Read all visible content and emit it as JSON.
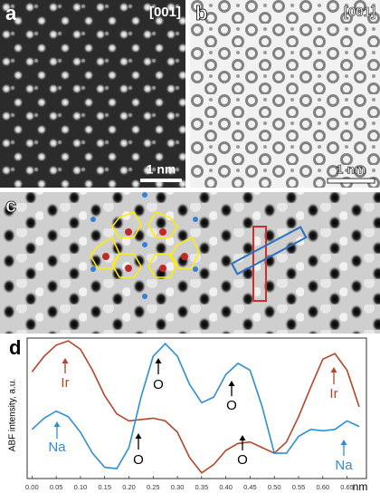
{
  "panels": [
    {
      "label": "a",
      "zone": "[001]",
      "scale": "1 nm"
    },
    {
      "label": "b",
      "zone": "[001]",
      "scale": "1 nm"
    },
    {
      "label": "c"
    }
  ],
  "chart_data": {
    "type": "line",
    "label": "d",
    "ylabel": "ABF intensity, a.u.",
    "xlabel": "nm",
    "x": [
      0,
      0.025,
      0.05,
      0.075,
      0.1,
      0.125,
      0.15,
      0.175,
      0.2,
      0.225,
      0.25,
      0.275,
      0.3,
      0.325,
      0.35,
      0.375,
      0.4,
      0.425,
      0.45,
      0.475,
      0.5,
      0.525,
      0.55,
      0.575,
      0.6,
      0.625,
      0.65,
      0.675
    ],
    "series": [
      {
        "color": "#b5452c",
        "values": [
          76,
          87,
          95,
          98,
          92,
          77,
          59,
          46,
          41,
          42,
          43,
          41,
          33,
          15,
          4,
          10,
          20,
          25,
          26,
          22,
          18,
          26,
          44,
          65,
          85,
          89,
          77,
          51
        ]
      },
      {
        "color": "#2e8fd2",
        "values": [
          35,
          43,
          48,
          44,
          33,
          18,
          8,
          7,
          22,
          58,
          87,
          96,
          87,
          67,
          54,
          58,
          74,
          82,
          77,
          51,
          18,
          18,
          30,
          35,
          34,
          35,
          41,
          37
        ]
      }
    ],
    "xlim": [
      -0.01,
      0.69
    ],
    "ylim": [
      0,
      100
    ],
    "xticks": [
      {
        "value": 0,
        "label": "0.00"
      },
      {
        "value": 0.05,
        "label": "0.05"
      },
      {
        "value": 0.1,
        "label": "0.10"
      },
      {
        "value": 0.15,
        "label": "0.15"
      },
      {
        "value": 0.2,
        "label": "0.20"
      },
      {
        "value": 0.25,
        "label": "0.25"
      },
      {
        "value": 0.3,
        "label": "0.30"
      },
      {
        "value": 0.35,
        "label": "0.35"
      },
      {
        "value": 0.4,
        "label": "0.40"
      },
      {
        "value": 0.45,
        "label": "0.45"
      },
      {
        "value": 0.5,
        "label": "0.50"
      },
      {
        "value": 0.55,
        "label": "0.55"
      },
      {
        "value": 0.6,
        "label": "0.60"
      },
      {
        "value": 0.65,
        "label": "0.65"
      }
    ],
    "annotations": [
      {
        "text": "Ir",
        "color": "#b5452c"
      },
      {
        "text": "Ir",
        "color": "#b5452c"
      },
      {
        "text": "Na",
        "color": "#2e8fd2"
      },
      {
        "text": "Na",
        "color": "#2e8fd2"
      },
      {
        "text": "O",
        "color": "#000000"
      },
      {
        "text": "O",
        "color": "#000000"
      },
      {
        "text": "O",
        "color": "#000000"
      },
      {
        "text": "O",
        "color": "#000000"
      }
    ]
  }
}
